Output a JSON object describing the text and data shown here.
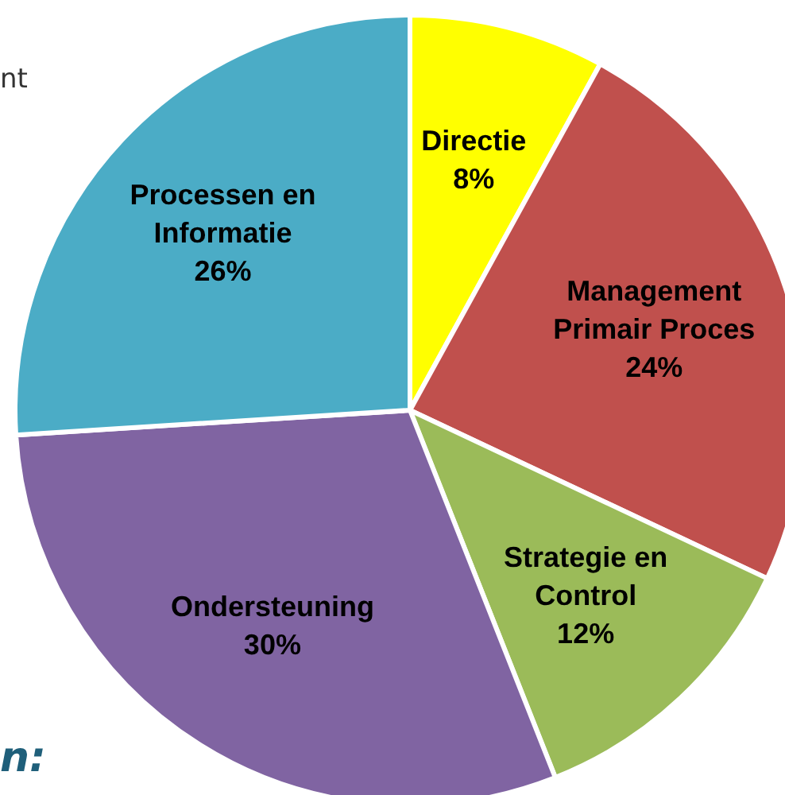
{
  "chart_data": {
    "type": "pie",
    "categories": [
      "Directie",
      "Management Primair Proces",
      "Strategie en Control",
      "Ondersteuning",
      "Processen en Informatie"
    ],
    "values": [
      8,
      24,
      12,
      30,
      26
    ],
    "colors": [
      "#ffff00",
      "#c0504d",
      "#9bbb59",
      "#8064a2",
      "#4bacc6"
    ],
    "value_labels": [
      "8%",
      "24%",
      "12%",
      "30%",
      "26%"
    ],
    "legend": false,
    "annotations": [
      "nt",
      "n:"
    ]
  }
}
